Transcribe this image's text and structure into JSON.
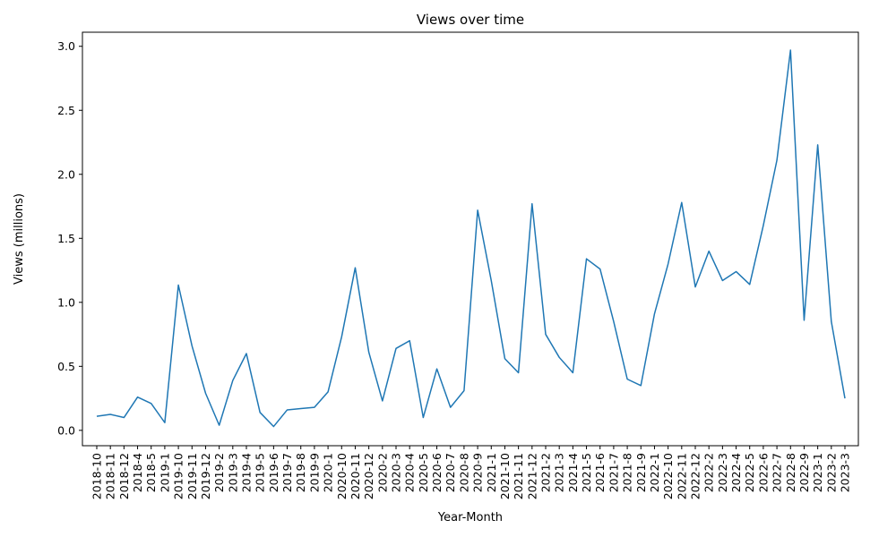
{
  "chart_data": {
    "type": "line",
    "title": "Views over time",
    "xlabel": "Year-Month",
    "ylabel": "Views (millions)",
    "ylim": [
      -0.12,
      3.11
    ],
    "yticks": [
      0.0,
      0.5,
      1.0,
      1.5,
      2.0,
      2.5,
      3.0
    ],
    "ytick_labels": [
      "0.0",
      "0.5",
      "1.0",
      "1.5",
      "2.0",
      "2.5",
      "3.0"
    ],
    "grid": false,
    "line_color": "#1f77b4",
    "categories": [
      "2018-10",
      "2018-11",
      "2018-12",
      "2018-4",
      "2018-5",
      "2019-1",
      "2019-10",
      "2019-11",
      "2019-12",
      "2019-2",
      "2019-3",
      "2019-4",
      "2019-5",
      "2019-6",
      "2019-7",
      "2019-8",
      "2019-9",
      "2020-1",
      "2020-10",
      "2020-11",
      "2020-12",
      "2020-2",
      "2020-3",
      "2020-4",
      "2020-5",
      "2020-6",
      "2020-7",
      "2020-8",
      "2020-9",
      "2021-1",
      "2021-10",
      "2021-11",
      "2021-12",
      "2021-2",
      "2021-3",
      "2021-4",
      "2021-5",
      "2021-6",
      "2021-7",
      "2021-8",
      "2021-9",
      "2022-1",
      "2022-10",
      "2022-11",
      "2022-12",
      "2022-2",
      "2022-3",
      "2022-4",
      "2022-5",
      "2022-6",
      "2022-7",
      "2022-8",
      "2022-9",
      "2023-1",
      "2023-2",
      "2023-3"
    ],
    "series": [
      {
        "values": [
          0.11,
          0.125,
          0.1,
          0.26,
          0.21,
          0.06,
          1.135,
          0.66,
          0.29,
          0.04,
          0.39,
          0.6,
          0.14,
          0.03,
          0.16,
          0.17,
          0.18,
          0.3,
          0.73,
          1.27,
          0.61,
          0.23,
          0.64,
          0.7,
          0.1,
          0.48,
          0.18,
          0.31,
          1.72,
          1.17,
          0.56,
          0.45,
          1.77,
          0.75,
          0.57,
          0.45,
          1.34,
          1.26,
          0.85,
          0.4,
          0.35,
          0.91,
          1.3,
          1.78,
          1.12,
          1.4,
          1.17,
          1.24,
          1.14,
          1.6,
          2.11,
          2.97,
          0.86,
          2.23,
          0.85,
          0.25
        ]
      }
    ]
  }
}
